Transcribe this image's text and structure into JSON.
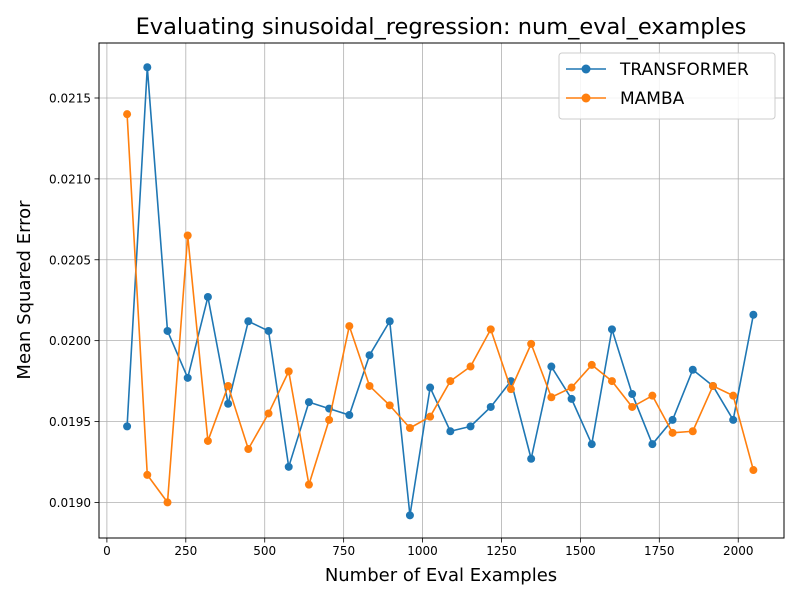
{
  "chart_data": {
    "type": "line",
    "title": "Evaluating sinusoidal_regression: num_eval_examples",
    "xlabel": "Number of Eval Examples",
    "ylabel": "Mean Squared Error",
    "xlim": [
      -25,
      2145
    ],
    "ylim": [
      0.01878,
      0.02184
    ],
    "xticks": [
      0,
      250,
      500,
      750,
      1000,
      1250,
      1500,
      1750,
      2000
    ],
    "xtick_labels": [
      "0",
      "250",
      "500",
      "750",
      "1000",
      "1250",
      "1500",
      "1750",
      "2000"
    ],
    "yticks": [
      0.019,
      0.0195,
      0.02,
      0.0205,
      0.021,
      0.0215
    ],
    "ytick_labels": [
      "0.0190",
      "0.0195",
      "0.0200",
      "0.0205",
      "0.0210",
      "0.0215"
    ],
    "grid": true,
    "legend_position": "top-right",
    "x": [
      64,
      128,
      192,
      256,
      320,
      384,
      448,
      512,
      576,
      640,
      704,
      768,
      832,
      896,
      960,
      1024,
      1088,
      1152,
      1216,
      1280,
      1344,
      1408,
      1472,
      1536,
      1600,
      1664,
      1728,
      1792,
      1856,
      1920,
      1984,
      2048
    ],
    "series": [
      {
        "name": "TRANSFORMER",
        "color": "#1f77b4",
        "values": [
          0.01947,
          0.02169,
          0.02006,
          0.01977,
          0.02027,
          0.01961,
          0.02012,
          0.02006,
          0.01922,
          0.01962,
          0.01958,
          0.01954,
          0.01991,
          0.02012,
          0.01892,
          0.01971,
          0.01944,
          0.01947,
          0.01959,
          0.01975,
          0.01927,
          0.01984,
          0.01964,
          0.01936,
          0.02007,
          0.01967,
          0.01936,
          0.01951,
          0.01982,
          0.01972,
          0.01951,
          0.02016
        ]
      },
      {
        "name": "MAMBA",
        "color": "#ff7f0e",
        "values": [
          0.0214,
          0.01917,
          0.019,
          0.02065,
          0.01938,
          0.01972,
          0.01933,
          0.01955,
          0.01981,
          0.01911,
          0.01951,
          0.02009,
          0.01972,
          0.0196,
          0.01946,
          0.01953,
          0.01975,
          0.01984,
          0.02007,
          0.0197,
          0.01998,
          0.01965,
          0.01971,
          0.01985,
          0.01975,
          0.01959,
          0.01966,
          0.01943,
          0.01944,
          0.01972,
          0.01966,
          0.0192
        ]
      }
    ]
  }
}
